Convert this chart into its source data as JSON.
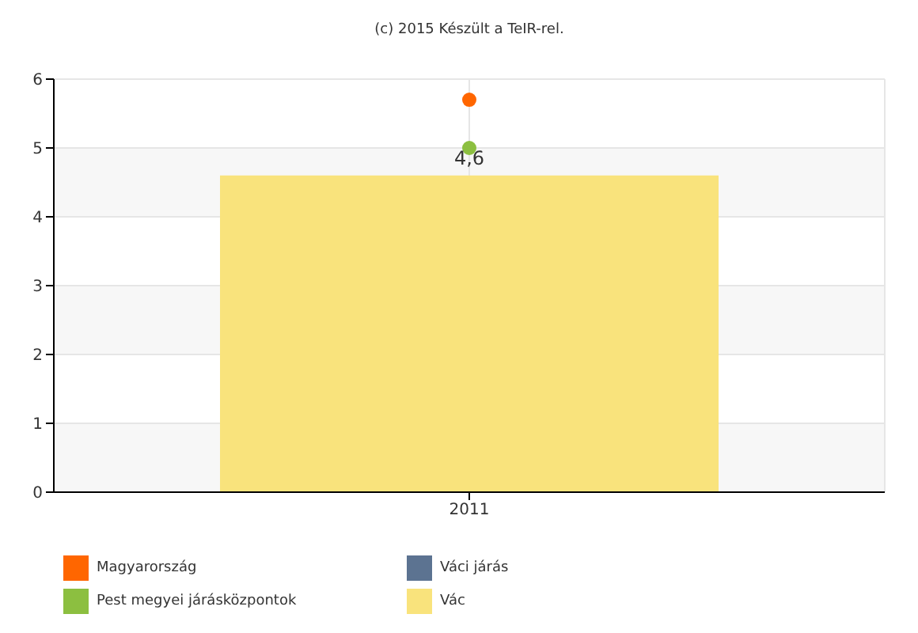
{
  "chart_data": {
    "type": "bar",
    "title": "(c) 2015 Készült a TeIR-rel.",
    "categories": [
      "2011"
    ],
    "series": [
      {
        "name": "Magyarország",
        "type": "scatter",
        "color": "#ff6600",
        "values": [
          5.7
        ]
      },
      {
        "name": "Váci járás",
        "type": "scatter",
        "color": "#5c7391",
        "values": [
          null
        ]
      },
      {
        "name": "Pest megyei járásközpontok",
        "type": "scatter",
        "color": "#8cbf40",
        "values": [
          5.0
        ]
      },
      {
        "name": "Vác",
        "color": "#f9e37c",
        "values": [
          4.6
        ],
        "value_labels": [
          "4,6"
        ]
      }
    ],
    "ylim": [
      0,
      6
    ],
    "yticks": [
      0,
      1,
      2,
      3,
      4,
      5,
      6
    ],
    "grid": true,
    "legend": "bottom",
    "marker": "circle"
  }
}
